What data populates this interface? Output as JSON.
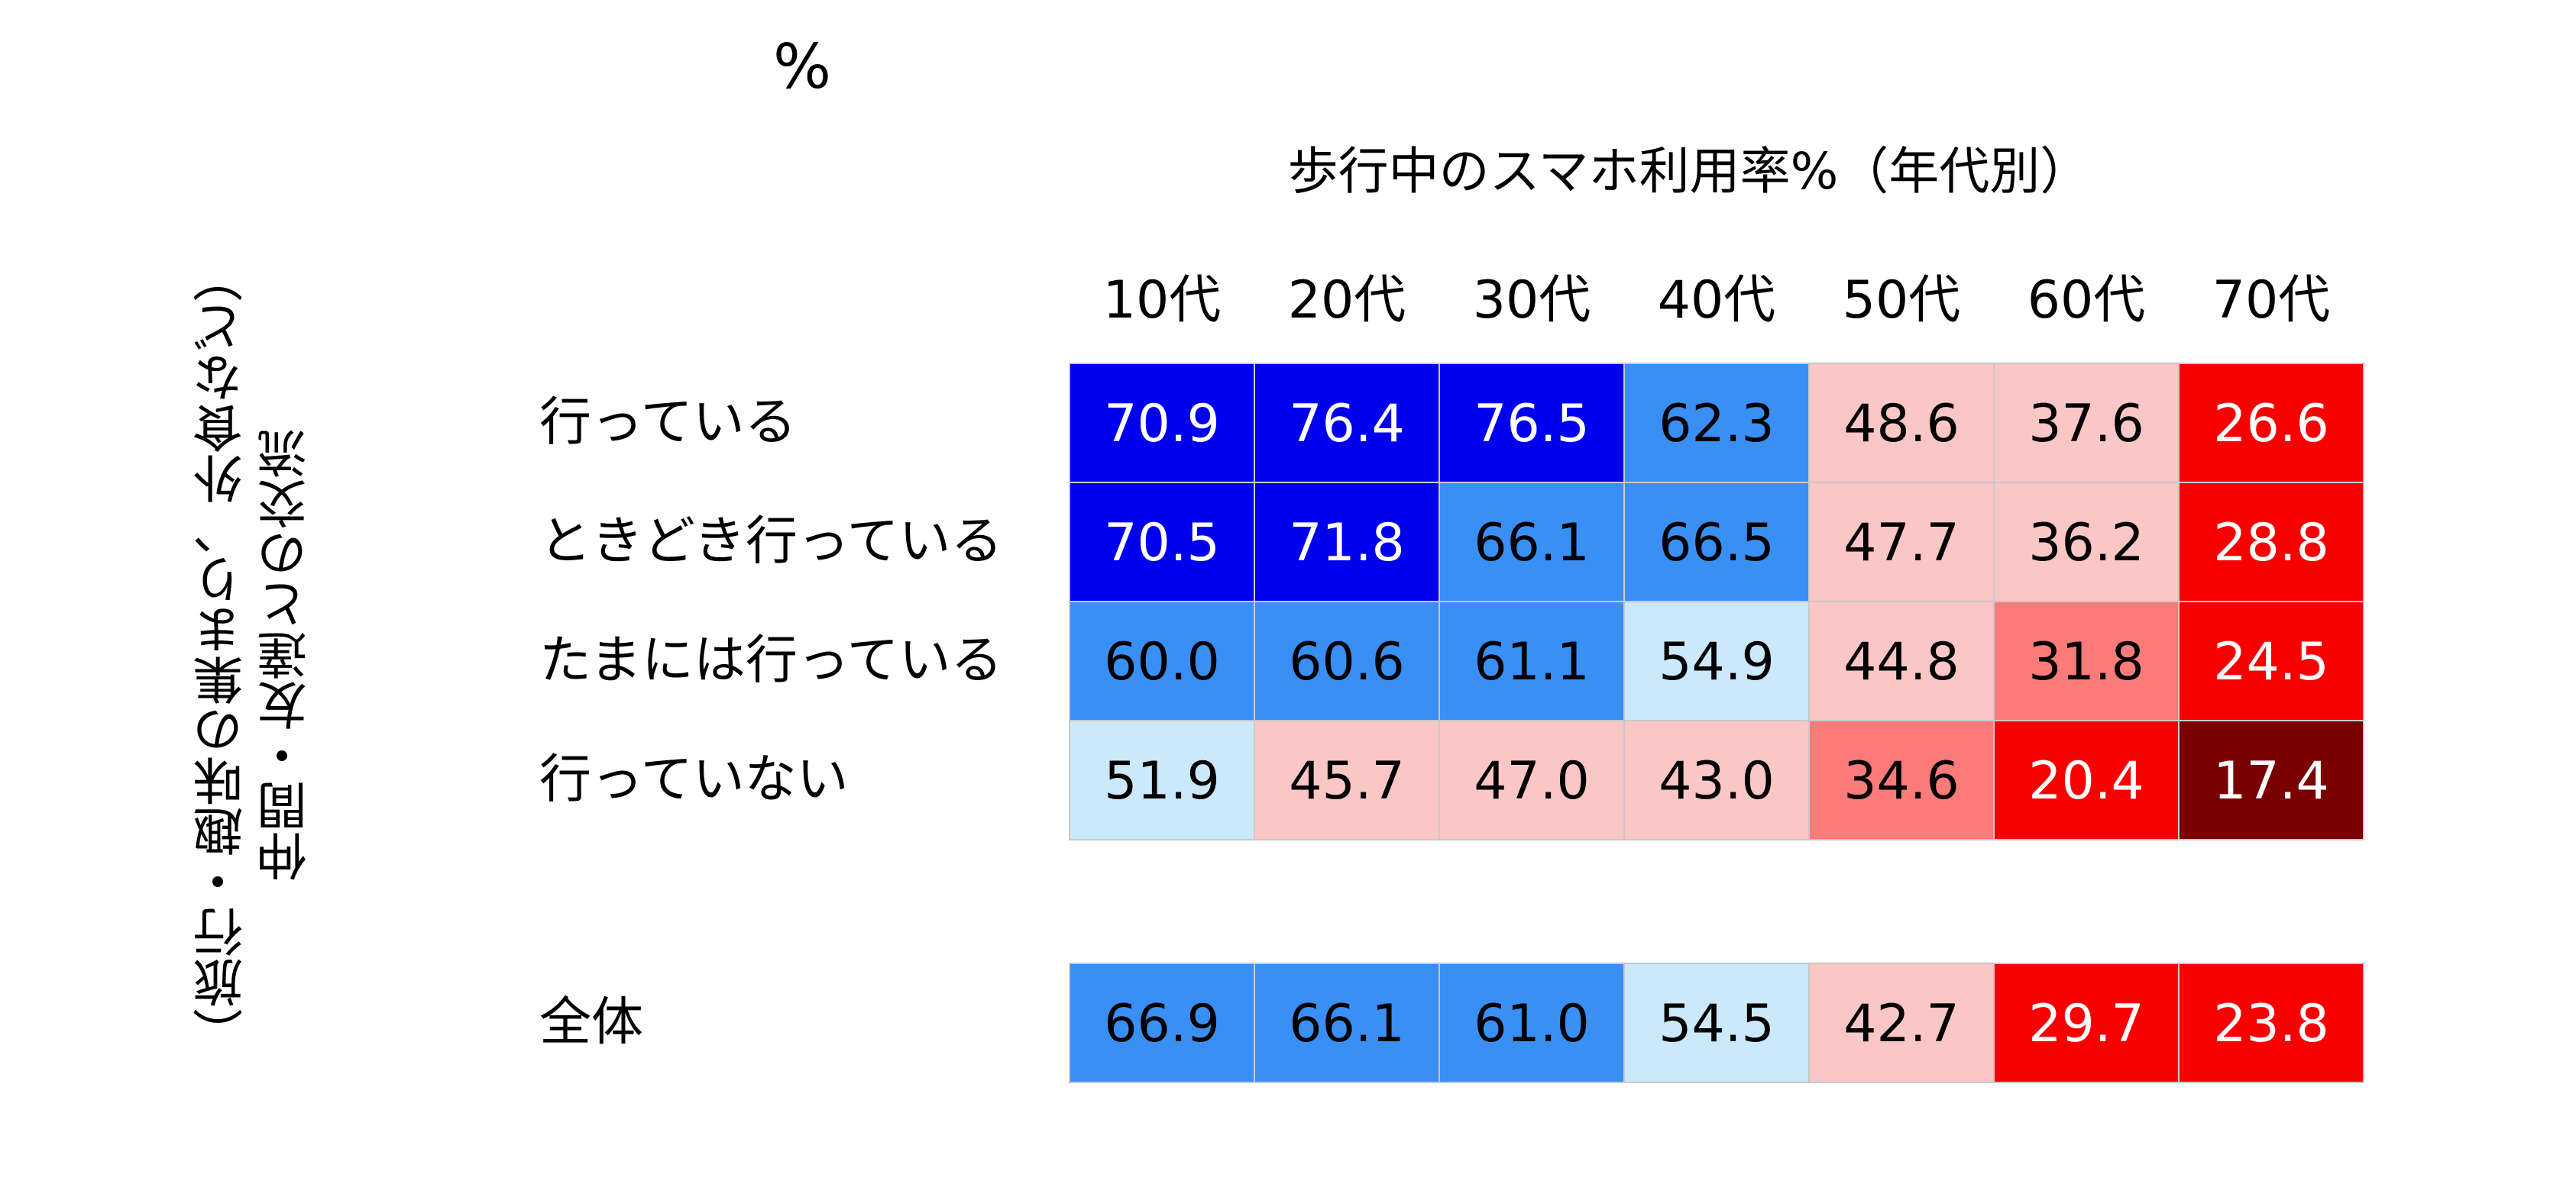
{
  "unit_label": "%",
  "chart_data": {
    "type": "heatmap",
    "title": "歩行中のスマホ利用率%（年代別）",
    "ylabel_lines": [
      "仲間・友達との交流",
      "（旅行・趣味の集まり、外食など）"
    ],
    "columns": [
      "10代",
      "20代",
      "30代",
      "40代",
      "50代",
      "60代",
      "70代"
    ],
    "rows": [
      "行っている",
      "ときどき行っている",
      "たまには行っている",
      "行っていない"
    ],
    "values": [
      [
        70.9,
        76.4,
        76.5,
        62.3,
        48.6,
        37.6,
        26.6
      ],
      [
        70.5,
        71.8,
        66.1,
        66.5,
        47.7,
        36.2,
        28.8
      ],
      [
        60.0,
        60.6,
        61.1,
        54.9,
        44.8,
        31.8,
        24.5
      ],
      [
        51.9,
        45.7,
        47.0,
        43.0,
        34.6,
        20.4,
        17.4
      ]
    ],
    "total": {
      "label": "全体",
      "values": [
        66.9,
        66.1,
        61.0,
        54.5,
        42.7,
        29.7,
        23.8
      ]
    }
  }
}
